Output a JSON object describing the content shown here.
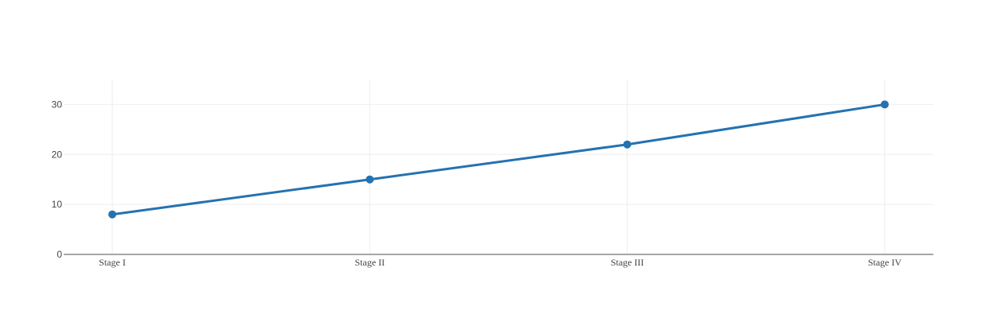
{
  "chart_data": {
    "type": "line",
    "categories": [
      "Stage I",
      "Stage II",
      "Stage III",
      "Stage IV"
    ],
    "series": [
      {
        "values": [
          8,
          15,
          22,
          30
        ]
      }
    ],
    "yticks": [
      0,
      10,
      20,
      30
    ],
    "ylim": [
      0,
      35
    ],
    "grid": true,
    "legend": "none",
    "colors": {
      "series": "#2572b0",
      "grid": "#eeeeee",
      "axis": "#888888",
      "text": "#444444"
    }
  }
}
